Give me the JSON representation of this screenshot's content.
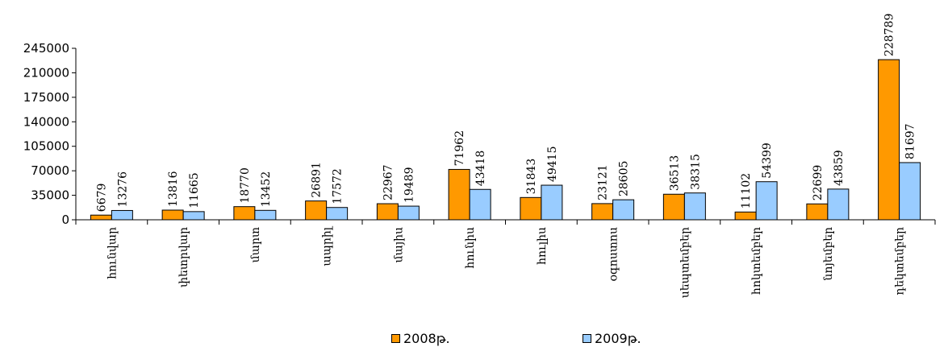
{
  "chart_data": {
    "type": "bar",
    "categories": [
      "հունվար",
      "փետրվար",
      "մարտ",
      "ապրիլ",
      "մայիս",
      "հունիս",
      "հուլիս",
      "օգոստոս",
      "սեպտեմբեր",
      "հոկտեմբեր",
      "նոյեմբեր",
      "դեկտեմբեր"
    ],
    "series": [
      {
        "name": "2008թ.",
        "color": "#FF9900",
        "values": [
          6679,
          13816,
          18770,
          26891,
          22967,
          71962,
          31843,
          23121,
          36513,
          11102,
          22699,
          228789
        ]
      },
      {
        "name": "2009թ.",
        "color": "#99CCFF",
        "values": [
          13276,
          11665,
          13452,
          17572,
          19489,
          43418,
          49415,
          28605,
          38315,
          54399,
          43859,
          81697
        ]
      }
    ],
    "ylim": [
      0,
      245000
    ],
    "yticks": [
      0,
      35000,
      70000,
      105000,
      140000,
      175000,
      210000,
      245000
    ],
    "grid": false,
    "legend": "bottom"
  }
}
